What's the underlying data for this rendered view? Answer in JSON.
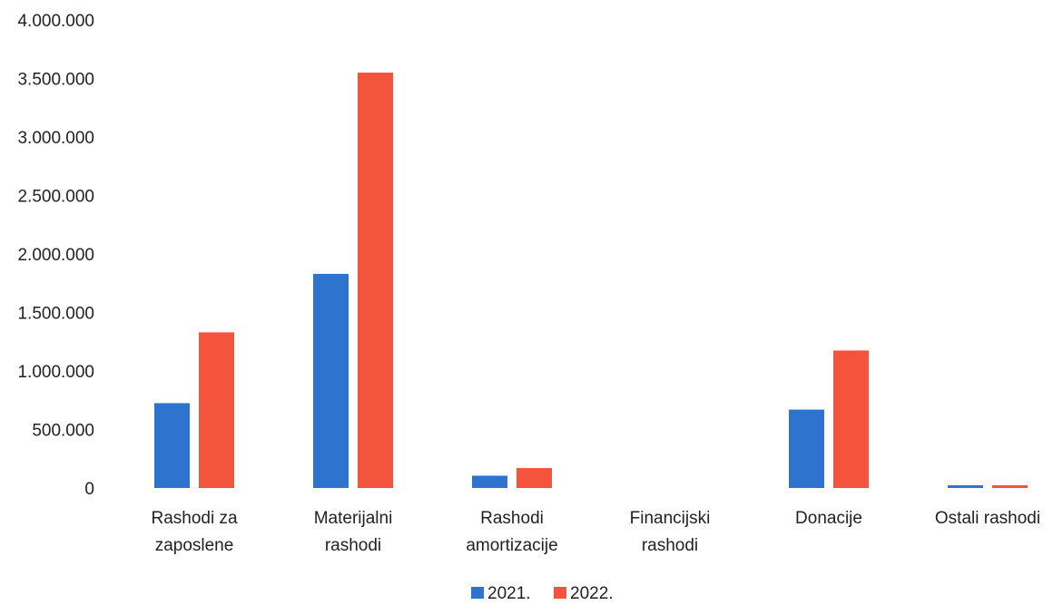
{
  "chart_data": {
    "type": "bar",
    "categories": [
      [
        "Rashodi za",
        "zaposlene"
      ],
      [
        "Materijalni",
        "rashodi"
      ],
      [
        "Rashodi",
        "amortizacije"
      ],
      [
        "Financijski",
        "rashodi"
      ],
      [
        "Donacije"
      ],
      [
        "Ostali rashodi"
      ]
    ],
    "series": [
      {
        "name": "2021.",
        "color": "#2E74CF",
        "values": [
          725000,
          1830000,
          105000,
          0,
          670000,
          18000
        ]
      },
      {
        "name": "2022.",
        "color": "#F4533C",
        "values": [
          1330000,
          3550000,
          170000,
          0,
          1175000,
          18000
        ]
      }
    ],
    "ylim": [
      0,
      4000000
    ],
    "yticks": [
      "0",
      "500.000",
      "1.000.000",
      "1.500.000",
      "2.000.000",
      "2.500.000",
      "3.000.000",
      "3.500.000",
      "4.000.000"
    ],
    "ytick_values": [
      0,
      500000,
      1000000,
      1500000,
      2000000,
      2500000,
      3000000,
      3500000,
      4000000
    ],
    "grid": false,
    "legend_position": "bottom-center"
  }
}
